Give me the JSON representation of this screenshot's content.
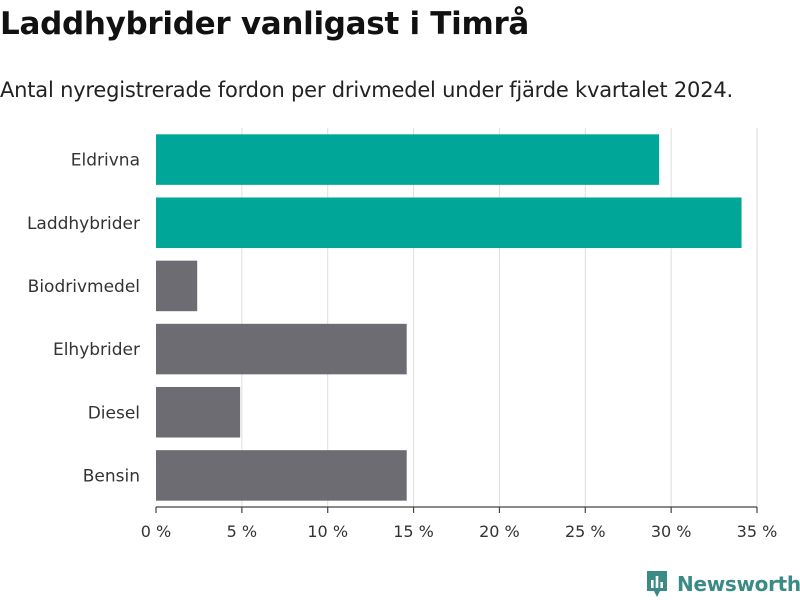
{
  "title": "Laddhybrider vanligast i Timrå",
  "subtitle": "Antal nyregistrerade fordon per drivmedel under fjärde kvartalet 2024.",
  "chart_data": {
    "type": "bar",
    "orientation": "horizontal",
    "title": "Laddhybrider vanligast i Timrå",
    "subtitle": "Antal nyregistrerade fordon per drivmedel under fjärde kvartalet 2024.",
    "categories": [
      "Eldrivna",
      "Laddhybrider",
      "Biodrivmedel",
      "Elhybrider",
      "Diesel",
      "Bensin"
    ],
    "values": [
      29.3,
      34.1,
      2.4,
      14.6,
      4.9,
      14.6
    ],
    "highlight": [
      true,
      true,
      false,
      false,
      false,
      false
    ],
    "xlabel": "",
    "ylabel": "",
    "xlim": [
      0,
      35
    ],
    "xticks": [
      0,
      5,
      10,
      15,
      20,
      25,
      30,
      35
    ],
    "xtick_labels": [
      "0 %",
      "5 %",
      "10 %",
      "15 %",
      "20 %",
      "25 %",
      "30 %",
      "35 %"
    ],
    "grid": true,
    "colors": {
      "highlight": "#00a698",
      "default": "#6d6c72",
      "grid": "#dedede",
      "axis": "#444444"
    }
  },
  "brand": {
    "name": "Newsworthy",
    "icon": "newsworthy-logo-icon",
    "color": "#3a8b86"
  }
}
